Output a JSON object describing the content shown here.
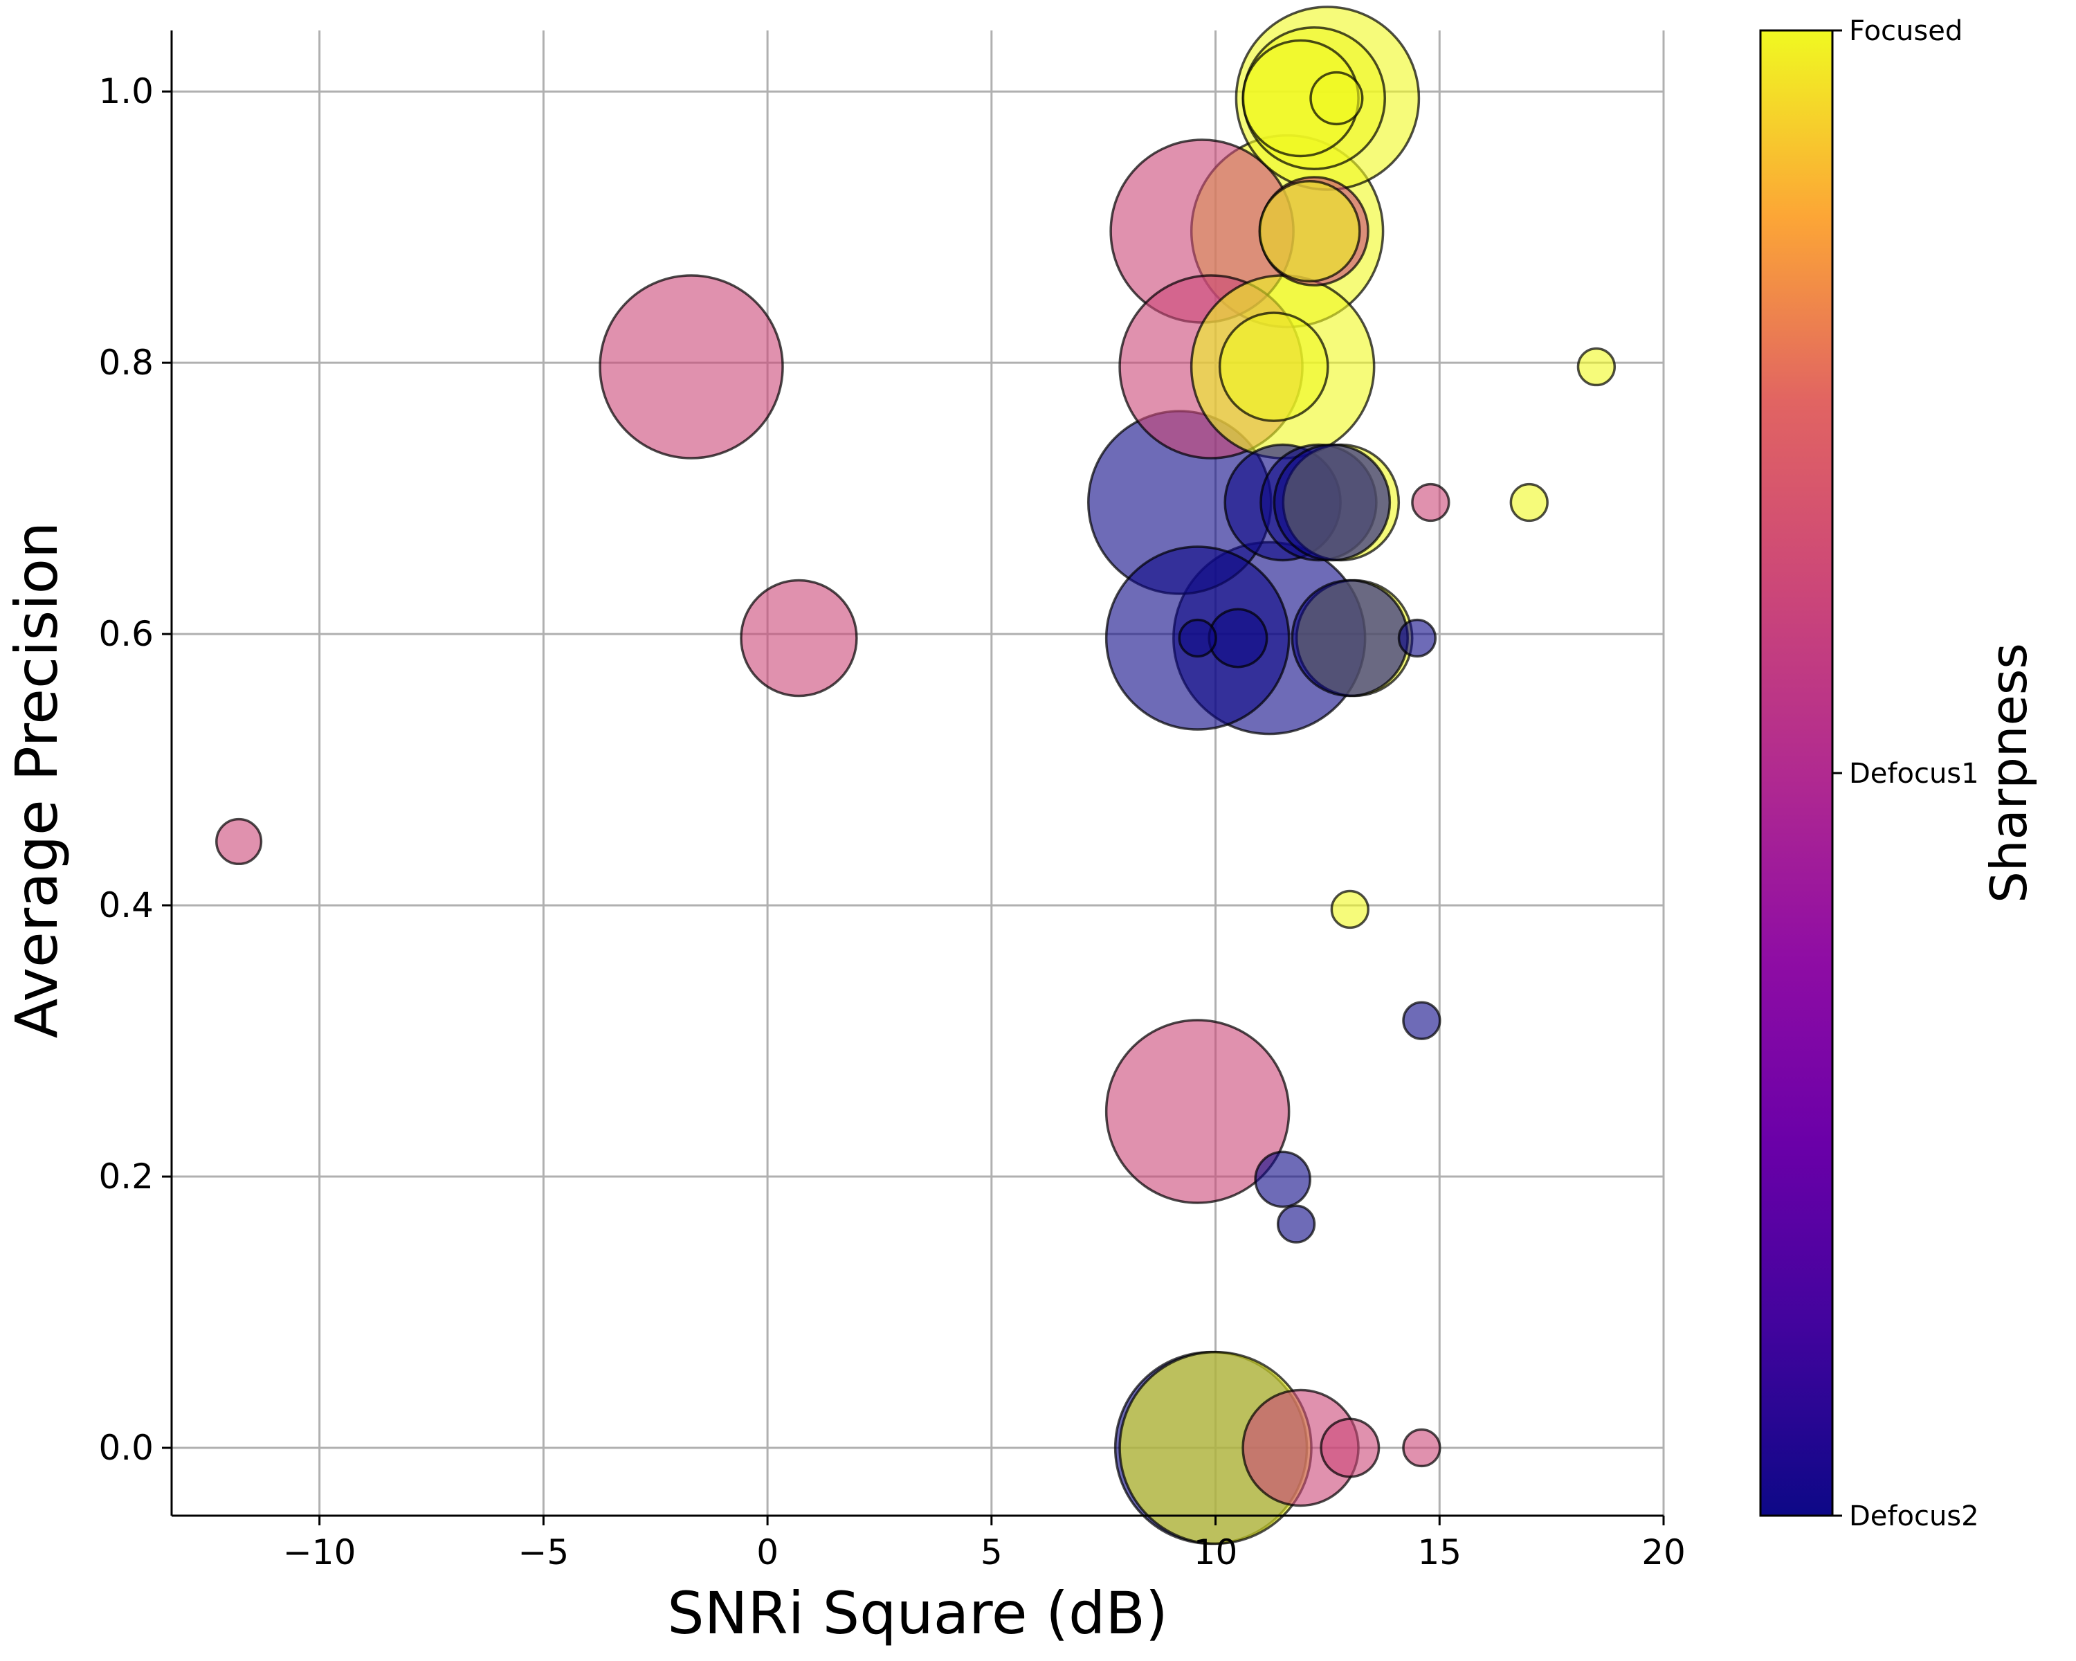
{
  "chart_data": {
    "type": "scatter",
    "xlabel": "SNRi Square (dB)",
    "ylabel": "Average Precision",
    "xlim": [
      -13.3,
      20
    ],
    "ylim": [
      -0.05,
      1.045
    ],
    "xticks": [
      -10,
      -5,
      0,
      5,
      10,
      15,
      20
    ],
    "xtick_labels": [
      "−10",
      "−5",
      "0",
      "5",
      "10",
      "15",
      "20"
    ],
    "yticks": [
      0.0,
      0.2,
      0.4,
      0.6,
      0.8,
      1.0
    ],
    "ytick_labels": [
      "0.0",
      "0.2",
      "0.4",
      "0.6",
      "0.8",
      "1.0"
    ],
    "grid": true,
    "colorbar": {
      "title": "Sharpness",
      "labels": [
        "Focused",
        "Defocus1",
        "Defocus2"
      ],
      "colormap": "plasma",
      "colors": [
        "#f0f921",
        "#cc4778",
        "#0d0887"
      ]
    },
    "marker_alpha": 0.6,
    "points": [
      {
        "x": -11.8,
        "y": 0.447,
        "size": 0.06,
        "sharpness": "Defocus1"
      },
      {
        "x": -1.7,
        "y": 0.797,
        "size": 1.0,
        "sharpness": "Defocus1"
      },
      {
        "x": 0.7,
        "y": 0.597,
        "size": 0.4,
        "sharpness": "Defocus1"
      },
      {
        "x": 9.2,
        "y": 0.697,
        "size": 1.0,
        "sharpness": "Defocus2"
      },
      {
        "x": 9.6,
        "y": 0.597,
        "size": 1.0,
        "sharpness": "Defocus2"
      },
      {
        "x": 9.6,
        "y": 0.597,
        "size": 0.04,
        "sharpness": "Defocus2"
      },
      {
        "x": 10.5,
        "y": 0.597,
        "size": 0.1,
        "sharpness": "Defocus2"
      },
      {
        "x": 9.7,
        "y": 0.897,
        "size": 1.0,
        "sharpness": "Defocus1"
      },
      {
        "x": 9.9,
        "y": 0.797,
        "size": 1.0,
        "sharpness": "Defocus1"
      },
      {
        "x": 9.6,
        "y": 0.248,
        "size": 1.0,
        "sharpness": "Defocus1"
      },
      {
        "x": 9.9,
        "y": 0.0,
        "size": 1.1,
        "sharpness": "Defocus2"
      },
      {
        "x": 10.0,
        "y": 0.0,
        "size": 1.1,
        "sharpness": "Focused"
      },
      {
        "x": 11.2,
        "y": 0.597,
        "size": 1.1,
        "sharpness": "Defocus2"
      },
      {
        "x": 11.5,
        "y": 0.697,
        "size": 0.4,
        "sharpness": "Defocus2"
      },
      {
        "x": 11.5,
        "y": 0.797,
        "size": 1.0,
        "sharpness": "Focused"
      },
      {
        "x": 11.3,
        "y": 0.797,
        "size": 0.35,
        "sharpness": "Focused"
      },
      {
        "x": 11.6,
        "y": 0.897,
        "size": 1.1,
        "sharpness": "Focused"
      },
      {
        "x": 12.2,
        "y": 0.897,
        "size": 0.35,
        "sharpness": "Defocus1"
      },
      {
        "x": 12.1,
        "y": 0.897,
        "size": 0.3,
        "sharpness": "Focused"
      },
      {
        "x": 11.9,
        "y": 0.995,
        "size": 0.4,
        "sharpness": "Focused"
      },
      {
        "x": 12.2,
        "y": 0.995,
        "size": 0.6,
        "sharpness": "Focused"
      },
      {
        "x": 12.5,
        "y": 0.995,
        "size": 1.0,
        "sharpness": "Focused"
      },
      {
        "x": 12.7,
        "y": 0.995,
        "size": 0.08,
        "sharpness": "Focused"
      },
      {
        "x": 12.3,
        "y": 0.697,
        "size": 0.4,
        "sharpness": "Defocus2"
      },
      {
        "x": 12.8,
        "y": 0.697,
        "size": 0.4,
        "sharpness": "Focused"
      },
      {
        "x": 12.6,
        "y": 0.697,
        "size": 0.4,
        "sharpness": "Defocus2"
      },
      {
        "x": 13.1,
        "y": 0.597,
        "size": 0.4,
        "sharpness": "Focused"
      },
      {
        "x": 13.0,
        "y": 0.597,
        "size": 0.4,
        "sharpness": "Defocus2"
      },
      {
        "x": 11.5,
        "y": 0.198,
        "size": 0.09,
        "sharpness": "Defocus2"
      },
      {
        "x": 11.8,
        "y": 0.165,
        "size": 0.04,
        "sharpness": "Defocus2"
      },
      {
        "x": 11.9,
        "y": 0.0,
        "size": 0.4,
        "sharpness": "Defocus1"
      },
      {
        "x": 13.0,
        "y": 0.0,
        "size": 0.1,
        "sharpness": "Defocus1"
      },
      {
        "x": 13.0,
        "y": 0.397,
        "size": 0.04,
        "sharpness": "Focused"
      },
      {
        "x": 14.5,
        "y": 0.597,
        "size": 0.04,
        "sharpness": "Defocus2"
      },
      {
        "x": 14.6,
        "y": 0.315,
        "size": 0.04,
        "sharpness": "Defocus2"
      },
      {
        "x": 14.6,
        "y": 0.0,
        "size": 0.04,
        "sharpness": "Defocus1"
      },
      {
        "x": 14.8,
        "y": 0.697,
        "size": 0.04,
        "sharpness": "Defocus1"
      },
      {
        "x": 17.0,
        "y": 0.697,
        "size": 0.04,
        "sharpness": "Focused"
      },
      {
        "x": 18.5,
        "y": 0.797,
        "size": 0.04,
        "sharpness": "Focused"
      }
    ]
  }
}
